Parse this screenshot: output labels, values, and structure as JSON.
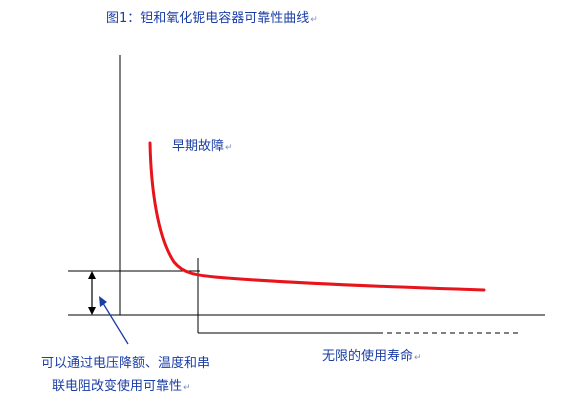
{
  "title": "图1：钽和氧化铌电容器可靠性曲线",
  "labels": {
    "early_failure": "早期故障",
    "unlimited_life": "无限的使用寿命",
    "derating_line1": "可以通过电压降额、温度和串",
    "derating_line2": "联电阻改变使用可靠性"
  },
  "return_mark": "↵",
  "colors": {
    "curve": "#e8141c",
    "axes": "#000000",
    "text": "#1a3da6",
    "arrow": "#1a3da6"
  }
}
